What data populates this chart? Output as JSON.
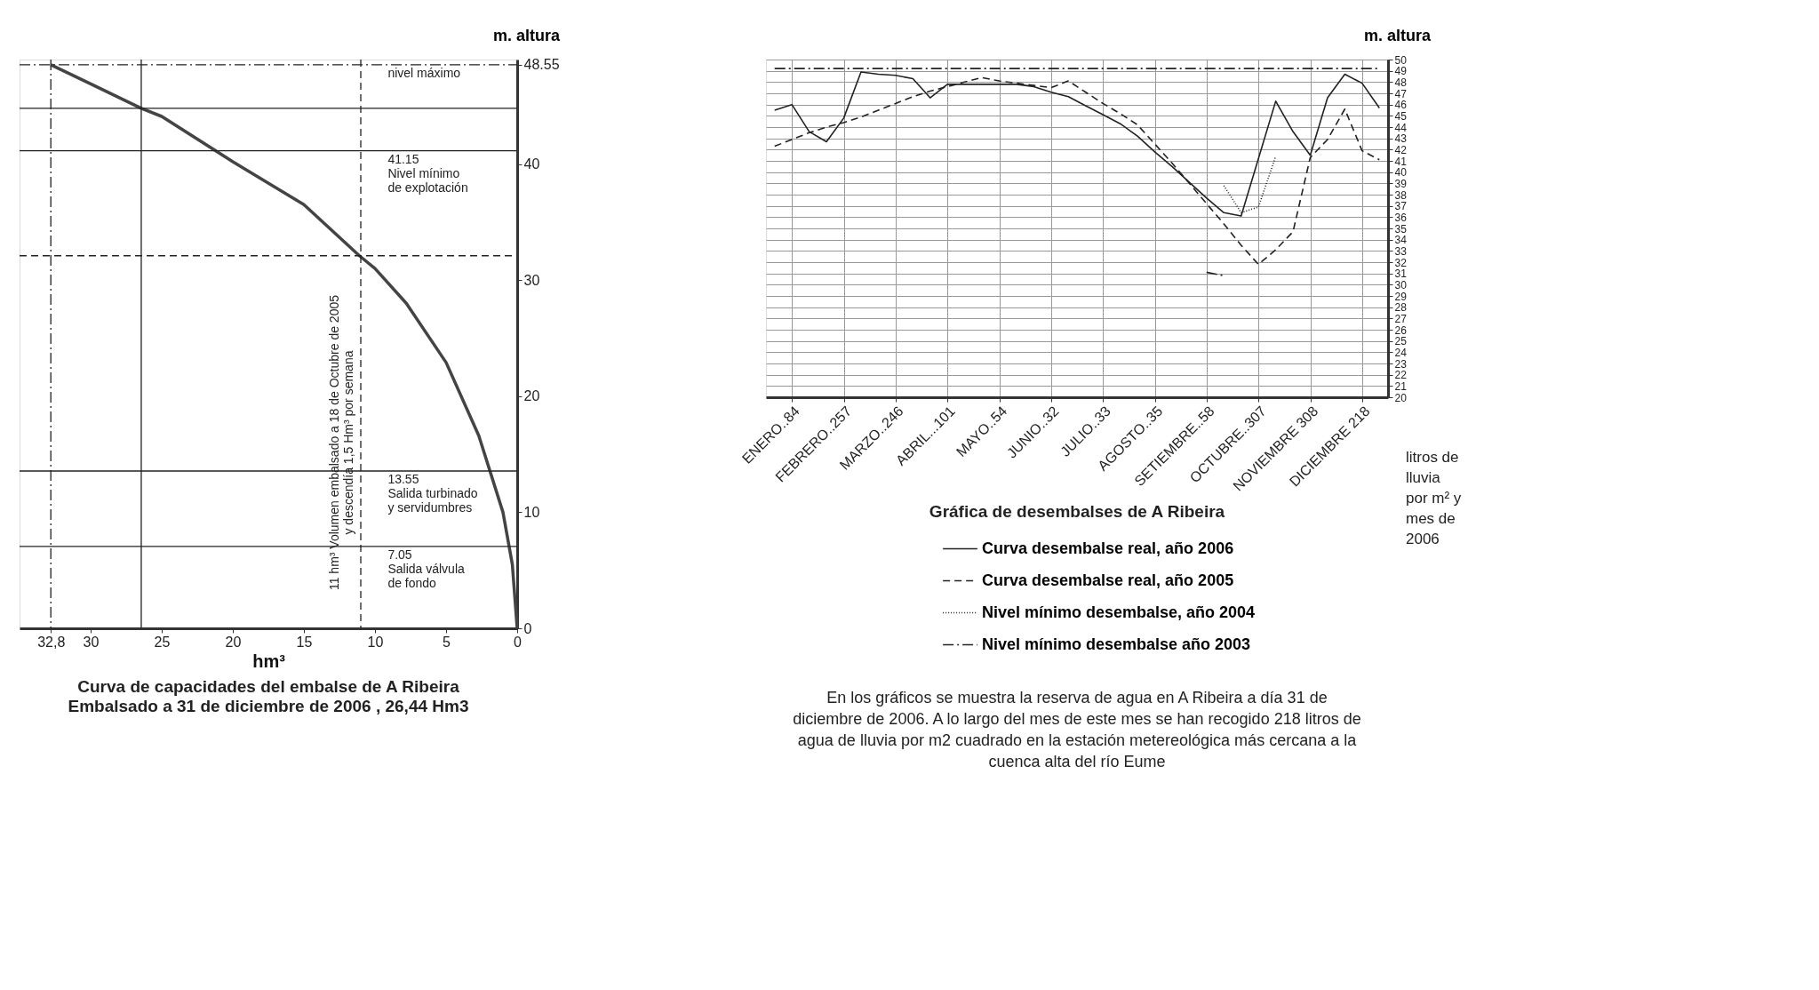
{
  "chart_data": [
    {
      "type": "line",
      "title": "Curva de capacidades del embalse de A Ribeira",
      "subtitle": "Embalsado a 31 de diciembre de 2006 ,   26,44 Hm3",
      "xlabel": "hm³",
      "ylabel": "m. altura",
      "xlim": [
        35,
        0
      ],
      "xticks": [
        0,
        5,
        10,
        15,
        20,
        25,
        30,
        {
          "value": 32.8,
          "label": "32,8"
        }
      ],
      "ylim": [
        0,
        49
      ],
      "yticks": [
        0,
        10,
        20,
        30,
        40,
        48.55
      ],
      "series": [
        {
          "color": "#444444",
          "line_style": "solid",
          "x": [
            32.8,
            30,
            26.44,
            25,
            20,
            15,
            11.1,
            10,
            7.8,
            5,
            2.7,
            1,
            0.34,
            0
          ],
          "values": [
            48.55,
            46.9,
            44.8,
            44.1,
            40.2,
            36.5,
            32.1,
            31.0,
            28.0,
            22.9,
            16.6,
            10.0,
            5.5,
            0
          ]
        }
      ],
      "ref_lines": [
        {
          "axis": "y",
          "value": 48.55,
          "label": "nivel máximo",
          "line_style": "dashdot",
          "color": "#222222"
        },
        {
          "axis": "y",
          "value": 44.8,
          "color": "#222222"
        },
        {
          "axis": "y",
          "value": 41.15,
          "label": "41.15\nNivel mínimo\nde explotación",
          "color": "#222222"
        },
        {
          "axis": "y",
          "value": 32.1,
          "line_style": "dashed",
          "color": "#222222"
        },
        {
          "axis": "y",
          "value": 13.55,
          "label": "13.55\nSalida turbinado\ny servidumbres",
          "color": "#222222"
        },
        {
          "axis": "y",
          "value": 7.05,
          "label": "7.05\nSalida válvula\nde fondo",
          "color": "#222222"
        },
        {
          "axis": "x",
          "value": 32.8,
          "line_style": "dashdot",
          "color": "#222222"
        },
        {
          "axis": "x",
          "value": 26.44,
          "color": "#222222"
        },
        {
          "axis": "x",
          "value": 11,
          "line_style": "dashed",
          "color": "#222222"
        }
      ],
      "annotations": [
        {
          "text": "11 hm³ Volumen embalsado a 18 de Octubre de 2005\ny descendía 1,5 Hm³ por semana",
          "x": 11,
          "y": 16
        }
      ]
    },
    {
      "type": "line",
      "title": "Gráfica de desembalses de A Ribeira",
      "ylabel": "m. altura",
      "categories": [
        null,
        "ENERO..84",
        null,
        null,
        "FEBRERO..257",
        null,
        null,
        "MARZO..246",
        null,
        null,
        "ABRIL...101",
        null,
        null,
        "MAYO..54",
        null,
        null,
        "JUNIO..32",
        null,
        null,
        "JULIO..33",
        null,
        null,
        "AGOSTO..35",
        null,
        null,
        "SETIEMBRE..58",
        null,
        null,
        "OCTUBRE..307",
        null,
        null,
        "NOVIEMBRE 308",
        null,
        null,
        "DICIEMBRE 218",
        null
      ],
      "ylim": [
        20,
        50
      ],
      "yticks": [
        20,
        21,
        22,
        23,
        24,
        25,
        26,
        27,
        28,
        29,
        30,
        31,
        32,
        33,
        34,
        35,
        36,
        37,
        38,
        39,
        40,
        41,
        42,
        43,
        44,
        45,
        46,
        47,
        48,
        49,
        50
      ],
      "grid": true,
      "legend": "bottom",
      "series": [
        {
          "name": "Curva desembalse real, año 2006",
          "color": "#222222",
          "line_style": "solid",
          "values": [
            45.5,
            46.0,
            43.6,
            42.7,
            44.8,
            48.9,
            48.7,
            48.6,
            48.3,
            46.6,
            47.8,
            47.8,
            47.8,
            47.8,
            47.8,
            47.6,
            47.1,
            46.7,
            45.9,
            45.1,
            44.3,
            43.2,
            41.8,
            40.5,
            39.1,
            37.7,
            36.4,
            36.1,
            41.2,
            46.3,
            43.6,
            41.5,
            46.6,
            48.7,
            47.9,
            45.7
          ]
        },
        {
          "name": "Curva desembalse real, año 2005",
          "color": "#222222",
          "line_style": "dashed",
          "values": [
            42.3,
            42.9,
            43.5,
            44.0,
            44.4,
            44.9,
            45.5,
            46.1,
            46.7,
            47.2,
            47.6,
            48.0,
            48.4,
            48.1,
            47.9,
            47.7,
            47.5,
            48.1,
            47.1,
            46.1,
            45.2,
            44.2,
            42.5,
            40.8,
            39.0,
            37.2,
            35.4,
            33.5,
            31.8,
            33.1,
            34.7,
            41.3,
            42.9,
            45.6,
            41.9,
            41.1
          ]
        },
        {
          "name": "Nivel mínimo desembalse, año 2004",
          "color": "#222222",
          "line_style": "dotted",
          "values": [
            null,
            null,
            null,
            null,
            null,
            null,
            null,
            null,
            null,
            null,
            null,
            null,
            null,
            null,
            null,
            null,
            null,
            null,
            null,
            null,
            null,
            null,
            null,
            null,
            null,
            null,
            38.8,
            36.4,
            36.9,
            41.4,
            null,
            null,
            null,
            null,
            null,
            null
          ]
        },
        {
          "name": "Nivel mínimo desembalse año 2003",
          "color": "#222222",
          "line_style": "dashdot",
          "values": [
            49.2,
            49.2,
            49.2,
            49.2,
            49.2,
            49.2,
            49.2,
            49.2,
            49.2,
            49.2,
            49.2,
            49.2,
            49.2,
            49.2,
            49.2,
            49.2,
            49.2,
            49.2,
            49.2,
            49.2,
            49.2,
            49.2,
            49.2,
            49.2,
            49.2,
            49.2,
            49.2,
            49.2,
            49.2,
            49.2,
            49.2,
            49.2,
            49.2,
            49.2,
            49.2,
            49.2
          ]
        },
        {
          "color": "#222222",
          "line_style": "dashdot",
          "values": [
            null,
            null,
            null,
            null,
            null,
            null,
            null,
            null,
            null,
            null,
            null,
            null,
            null,
            null,
            null,
            null,
            null,
            null,
            null,
            null,
            null,
            null,
            null,
            null,
            null,
            31.1,
            30.8,
            null,
            null,
            null,
            null,
            null,
            null,
            null,
            null,
            null
          ]
        }
      ],
      "annotations": [
        "litros de\nlluvia\npor m² y\nmes de\n2006",
        "En los gráficos se muestra la reserva de agua en A Ribeira a día 31 de\ndiciembre de 2006. A lo largo del mes de este mes se han recogido 218 litros de\nagua de lluvia por m2 cuadrado en la estación metereológica más cercana a la\ncuenca alta del río Eume"
      ]
    }
  ]
}
